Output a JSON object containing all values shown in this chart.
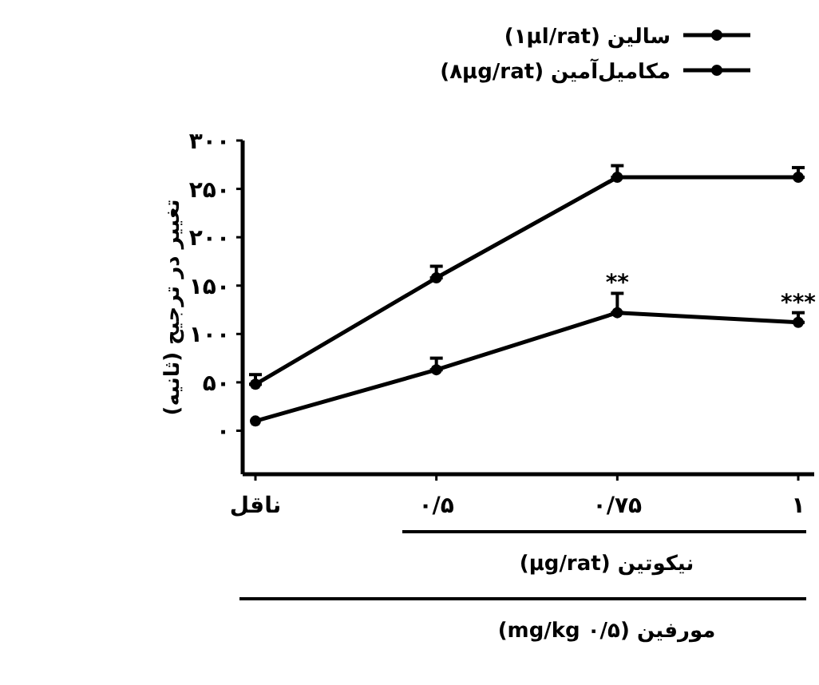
{
  "chart_data": {
    "type": "line",
    "categories": [
      "ناقل",
      "۰/۵",
      "۰/۷۵",
      "۱"
    ],
    "ylabel": "تغییر در ترجیح (ثانیه)",
    "xlabel": "(µg/rat) نیکوتین",
    "annotations": [
      {
        "text": "**",
        "x": "۰/۷۵",
        "y": 142
      },
      {
        "text": "***",
        "x": "۱",
        "y": 122
      },
      "مورفین (۰/۵ mg/kg)"
    ],
    "series": [
      {
        "name": "سالین (۱µl/rat)",
        "color": "#000000",
        "values": [
          48,
          158,
          262,
          262
        ],
        "errors": [
          [
            48,
            58
          ],
          [
            158,
            170
          ],
          [
            262,
            274
          ],
          [
            262,
            272
          ]
        ]
      },
      {
        "name": "مکامیل‌آمین (۸µg/rat)",
        "color": "#000000",
        "values": [
          10,
          63,
          122,
          112
        ],
        "errors": [
          null,
          [
            63,
            75
          ],
          [
            122,
            142
          ],
          [
            112,
            122
          ]
        ]
      }
    ],
    "ylim": [
      -45,
      300
    ],
    "yticks": [
      {
        "value": 0,
        "label": "۰"
      },
      {
        "value": 50,
        "label": "۵۰"
      },
      {
        "value": 100,
        "label": "۱۰۰"
      },
      {
        "value": 150,
        "label": "۱۵۰"
      },
      {
        "value": 200,
        "label": "۲۰۰"
      },
      {
        "value": 250,
        "label": "۲۵۰"
      },
      {
        "value": 300,
        "label": "۳۰۰"
      }
    ],
    "marker": "circle",
    "line_style": "solid",
    "legend": "top",
    "grid": false
  }
}
